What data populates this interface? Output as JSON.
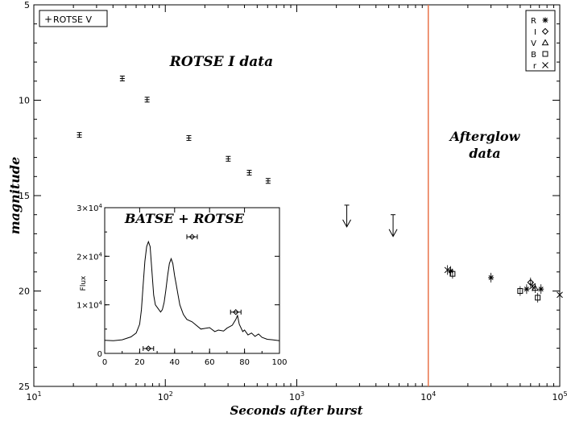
{
  "chart_data": {
    "type": "scatter",
    "xlabel": "Seconds after burst",
    "ylabel": "magnitude",
    "x_scale": "log",
    "xlim": [
      10,
      100000
    ],
    "ylim": [
      25,
      5
    ],
    "y_ticks": [
      "5",
      "10",
      "15",
      "20",
      "25"
    ],
    "x_ticks": [
      "10^1",
      "10^2",
      "10^3",
      "10^4",
      "10^5"
    ],
    "annotations": {
      "rotse_label": "ROTSE I data",
      "afterglow_label_1": "Afterglow",
      "afterglow_label_2": "data"
    },
    "vertical_line": {
      "x": 10000,
      "color": "#e8734a"
    },
    "legend_topleft": {
      "label": "ROTSE V",
      "symbol": "+"
    },
    "legend_topright": [
      {
        "label": "R",
        "symbol": "asterisk"
      },
      {
        "label": "I",
        "symbol": "diamond"
      },
      {
        "label": "V",
        "symbol": "triangle"
      },
      {
        "label": "B",
        "symbol": "square"
      },
      {
        "label": "r",
        "symbol": "x"
      }
    ],
    "rotse_points": [
      {
        "x": 22.2,
        "y": 11.82
      },
      {
        "x": 47.1,
        "y": 8.86
      },
      {
        "x": 72.7,
        "y": 9.97
      },
      {
        "x": 151,
        "y": 11.98
      },
      {
        "x": 301,
        "y": 13.07
      },
      {
        "x": 435,
        "y": 13.8
      },
      {
        "x": 605,
        "y": 14.23
      }
    ],
    "upper_limits": [
      {
        "x": 2400,
        "y": 15.5
      },
      {
        "x": 5400,
        "y": 16.0
      }
    ],
    "afterglow_points": [
      {
        "x": 14000,
        "y": 18.9,
        "marker": "x"
      },
      {
        "x": 14800,
        "y": 18.95,
        "marker": "asterisk"
      },
      {
        "x": 15300,
        "y": 19.1,
        "marker": "square"
      },
      {
        "x": 30000,
        "y": 19.3,
        "marker": "asterisk"
      },
      {
        "x": 50000,
        "y": 20.0,
        "marker": "square"
      },
      {
        "x": 56000,
        "y": 19.9,
        "marker": "asterisk"
      },
      {
        "x": 60000,
        "y": 19.55,
        "marker": "diamond"
      },
      {
        "x": 62000,
        "y": 19.75,
        "marker": "x"
      },
      {
        "x": 65000,
        "y": 19.85,
        "marker": "triangle"
      },
      {
        "x": 68000,
        "y": 20.35,
        "marker": "square"
      },
      {
        "x": 72000,
        "y": 19.9,
        "marker": "asterisk"
      },
      {
        "x": 100000,
        "y": 20.2,
        "marker": "x"
      }
    ],
    "inset": {
      "title": "BATSE + ROTSE",
      "ylabel": "Flux",
      "xlim": [
        0,
        100
      ],
      "ylim": [
        0,
        30000
      ],
      "x_ticks": [
        "0",
        "20",
        "40",
        "60",
        "80",
        "100"
      ],
      "y_ticks": [
        "0",
        "1×10^4",
        "2×10^4",
        "3×10^4"
      ],
      "curve": [
        [
          0,
          2700
        ],
        [
          5,
          2600
        ],
        [
          10,
          2800
        ],
        [
          15,
          3400
        ],
        [
          18,
          4200
        ],
        [
          20,
          6000
        ],
        [
          21,
          9000
        ],
        [
          22,
          14000
        ],
        [
          23,
          19000
        ],
        [
          24,
          22000
        ],
        [
          25,
          23000
        ],
        [
          26,
          22000
        ],
        [
          27,
          17000
        ],
        [
          28,
          12000
        ],
        [
          29,
          10000
        ],
        [
          30,
          9500
        ],
        [
          31,
          9000
        ],
        [
          32,
          8500
        ],
        [
          33,
          9000
        ],
        [
          34,
          10500
        ],
        [
          35,
          13000
        ],
        [
          36,
          16000
        ],
        [
          37,
          18500
        ],
        [
          38,
          19500
        ],
        [
          39,
          18500
        ],
        [
          40,
          16000
        ],
        [
          41,
          14000
        ],
        [
          42,
          12000
        ],
        [
          43,
          10000
        ],
        [
          44,
          9000
        ],
        [
          45,
          8000
        ],
        [
          47,
          7000
        ],
        [
          50,
          6500
        ],
        [
          55,
          5000
        ],
        [
          60,
          5300
        ],
        [
          63,
          4500
        ],
        [
          65,
          4800
        ],
        [
          68,
          4600
        ],
        [
          70,
          5200
        ],
        [
          73,
          5800
        ],
        [
          75,
          7000
        ],
        [
          76,
          7800
        ],
        [
          77,
          6000
        ],
        [
          79,
          4500
        ],
        [
          80,
          4800
        ],
        [
          82,
          3800
        ],
        [
          84,
          4200
        ],
        [
          86,
          3500
        ],
        [
          88,
          4000
        ],
        [
          90,
          3300
        ],
        [
          93,
          2900
        ],
        [
          96,
          2800
        ],
        [
          100,
          2600
        ]
      ],
      "points": [
        {
          "x": 25,
          "y": 1000,
          "xerr": 3
        },
        {
          "x": 50,
          "y": 24000,
          "xerr": 3
        },
        {
          "x": 75,
          "y": 8500,
          "xerr": 3
        }
      ]
    }
  }
}
